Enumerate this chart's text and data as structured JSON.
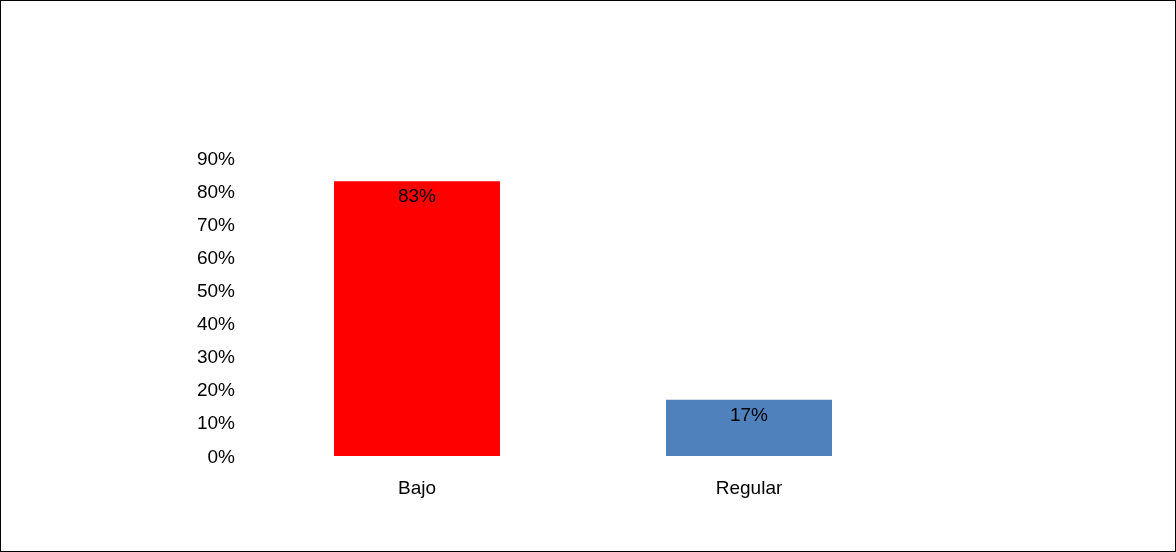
{
  "chart_data": {
    "type": "bar",
    "categories": [
      "Bajo",
      "Regular"
    ],
    "values": [
      83,
      17
    ],
    "colors": [
      "#ff0000",
      "#4f81bd"
    ],
    "value_labels": [
      "83%",
      "17%"
    ],
    "ylim": [
      0,
      90
    ],
    "yticks": [
      {
        "value": 0,
        "label": "0%"
      },
      {
        "value": 10,
        "label": "10%"
      },
      {
        "value": 20,
        "label": "20%"
      },
      {
        "value": 30,
        "label": "30%"
      },
      {
        "value": 40,
        "label": "40%"
      },
      {
        "value": 50,
        "label": "50%"
      },
      {
        "value": 60,
        "label": "60%"
      },
      {
        "value": 70,
        "label": "70%"
      },
      {
        "value": 80,
        "label": "80%"
      },
      {
        "value": 90,
        "label": "90%"
      }
    ],
    "grid": false
  }
}
